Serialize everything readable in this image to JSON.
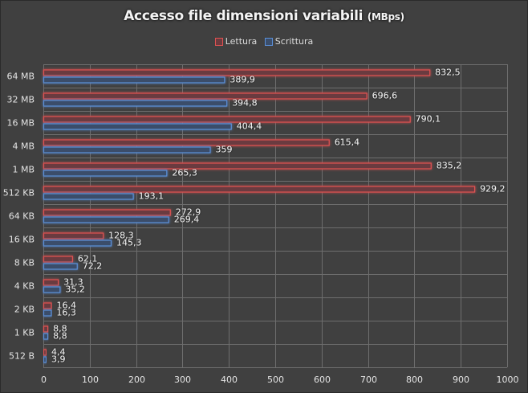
{
  "chart_data": {
    "type": "bar",
    "orientation": "horizontal",
    "title": "Accesso file dimensioni variabili",
    "title_unit": "(MBps)",
    "xlabel": "",
    "ylabel": "",
    "xlim": [
      0,
      1000
    ],
    "x_ticks": [
      "0",
      "100",
      "200",
      "300",
      "400",
      "500",
      "600",
      "700",
      "800",
      "900",
      "1000"
    ],
    "grid": true,
    "legend_position": "top-center",
    "categories": [
      "64 MB",
      "32 MB",
      "16 MB",
      "4 MB",
      "1 MB",
      "512 KB",
      "64 KB",
      "16 KB",
      "8 KB",
      "4 KB",
      "2 KB",
      "1 KB",
      "512 B"
    ],
    "series": [
      {
        "name": "Lettura",
        "color": "#e05252",
        "fill": "#6b3b3f",
        "values": [
          832.5,
          696.6,
          790.1,
          615.4,
          835.2,
          929.2,
          272.9,
          128.3,
          62.1,
          31.3,
          16.4,
          8.8,
          4.4
        ],
        "labels": [
          "832,5",
          "696,6",
          "790,1",
          "615,4",
          "835,2",
          "929,2",
          "272,9",
          "128,3",
          "62,1",
          "31,3",
          "16,4",
          "8,8",
          "4,4"
        ]
      },
      {
        "name": "Scrittura",
        "color": "#5b8fd8",
        "fill": "#3b4e6b",
        "values": [
          389.9,
          394.8,
          404.4,
          359,
          265.3,
          193.1,
          269.4,
          145.3,
          72.2,
          35.2,
          16.3,
          8.8,
          3.9
        ],
        "labels": [
          "389,9",
          "394,8",
          "404,4",
          "359",
          "265,3",
          "193,1",
          "269,4",
          "145,3",
          "72,2",
          "35,2",
          "16,3",
          "8,8",
          "3,9"
        ]
      }
    ]
  }
}
